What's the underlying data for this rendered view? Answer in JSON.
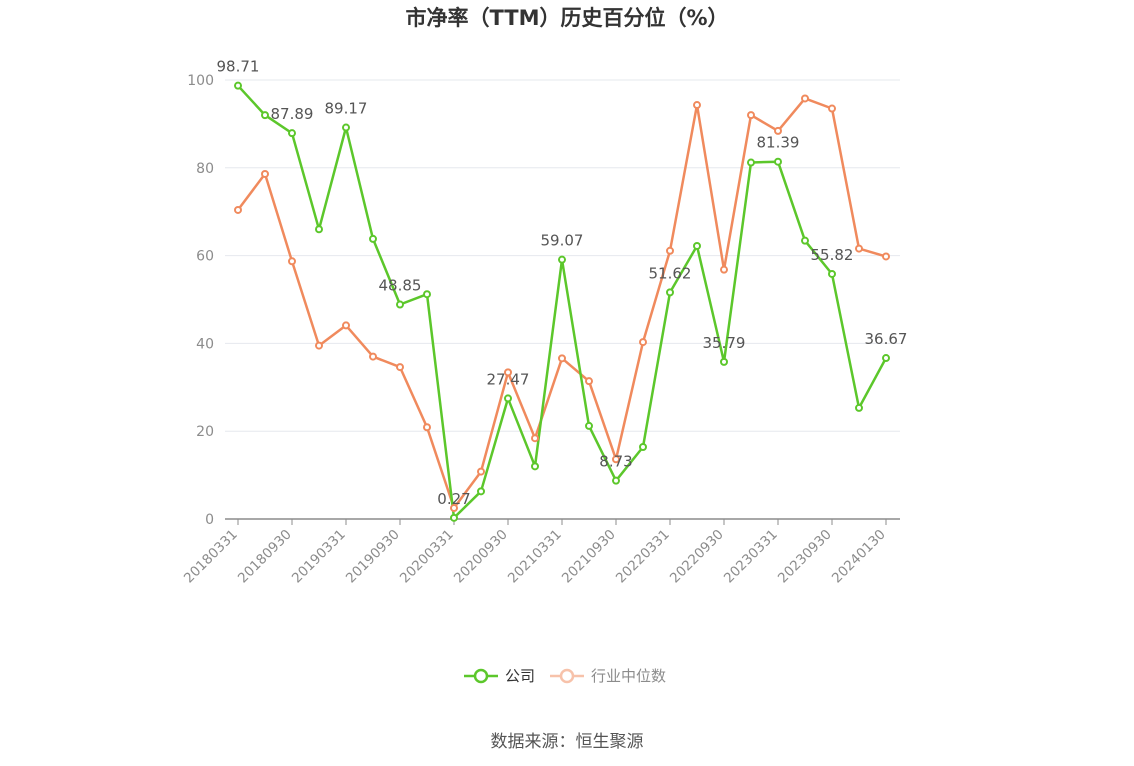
{
  "source_label": "数据来源：恒生聚源",
  "chart_data": {
    "type": "line",
    "title": "市净率（TTM）历史百分位（%）",
    "xlabel": "",
    "ylabel": "",
    "ylim": [
      0,
      100
    ],
    "yticks": [
      0,
      20,
      40,
      60,
      80,
      100
    ],
    "grid": true,
    "legend_position": "bottom",
    "categories": [
      "20180331",
      "20180630",
      "20180930",
      "20181231",
      "20190331",
      "20190630",
      "20190930",
      "20191231",
      "20200331",
      "20200630",
      "20200930",
      "20201231",
      "20210331",
      "20210630",
      "20210930",
      "20211231",
      "20220331",
      "20220630",
      "20220930",
      "20221231",
      "20230331",
      "20230630",
      "20230930",
      "20231231",
      "20240130"
    ],
    "xtick_labels": [
      "20180331",
      "20180930",
      "20190331",
      "20190930",
      "20200331",
      "20200930",
      "20210331",
      "20210930",
      "20220331",
      "20220930",
      "20230331",
      "20230930",
      "20240130"
    ],
    "series": [
      {
        "name": "公司",
        "color": "#5cc72b",
        "values": [
          98.71,
          92.0,
          87.89,
          66.0,
          89.17,
          63.8,
          48.85,
          51.2,
          0.27,
          6.3,
          27.47,
          12.0,
          59.07,
          21.2,
          8.73,
          16.4,
          51.62,
          62.2,
          35.79,
          81.2,
          81.39,
          63.4,
          55.82,
          25.3,
          36.67
        ],
        "labels": [
          "98.71",
          "",
          "87.89",
          "",
          "89.17",
          "",
          "48.85",
          "",
          "0.27",
          "",
          "27.47",
          "",
          "59.07",
          "",
          "8.73",
          "",
          "51.62",
          "",
          "35.79",
          "",
          "81.39",
          "",
          "55.82",
          "",
          "36.67"
        ]
      },
      {
        "name": "行业中位数",
        "color": "#f08a5d",
        "values": [
          70.4,
          78.6,
          58.7,
          39.5,
          44.1,
          37.0,
          34.6,
          20.9,
          2.5,
          10.8,
          33.4,
          18.4,
          36.6,
          31.4,
          13.6,
          40.3,
          61.1,
          94.3,
          56.8,
          92.0,
          88.4,
          95.8,
          93.5,
          61.6,
          59.8
        ]
      }
    ]
  }
}
